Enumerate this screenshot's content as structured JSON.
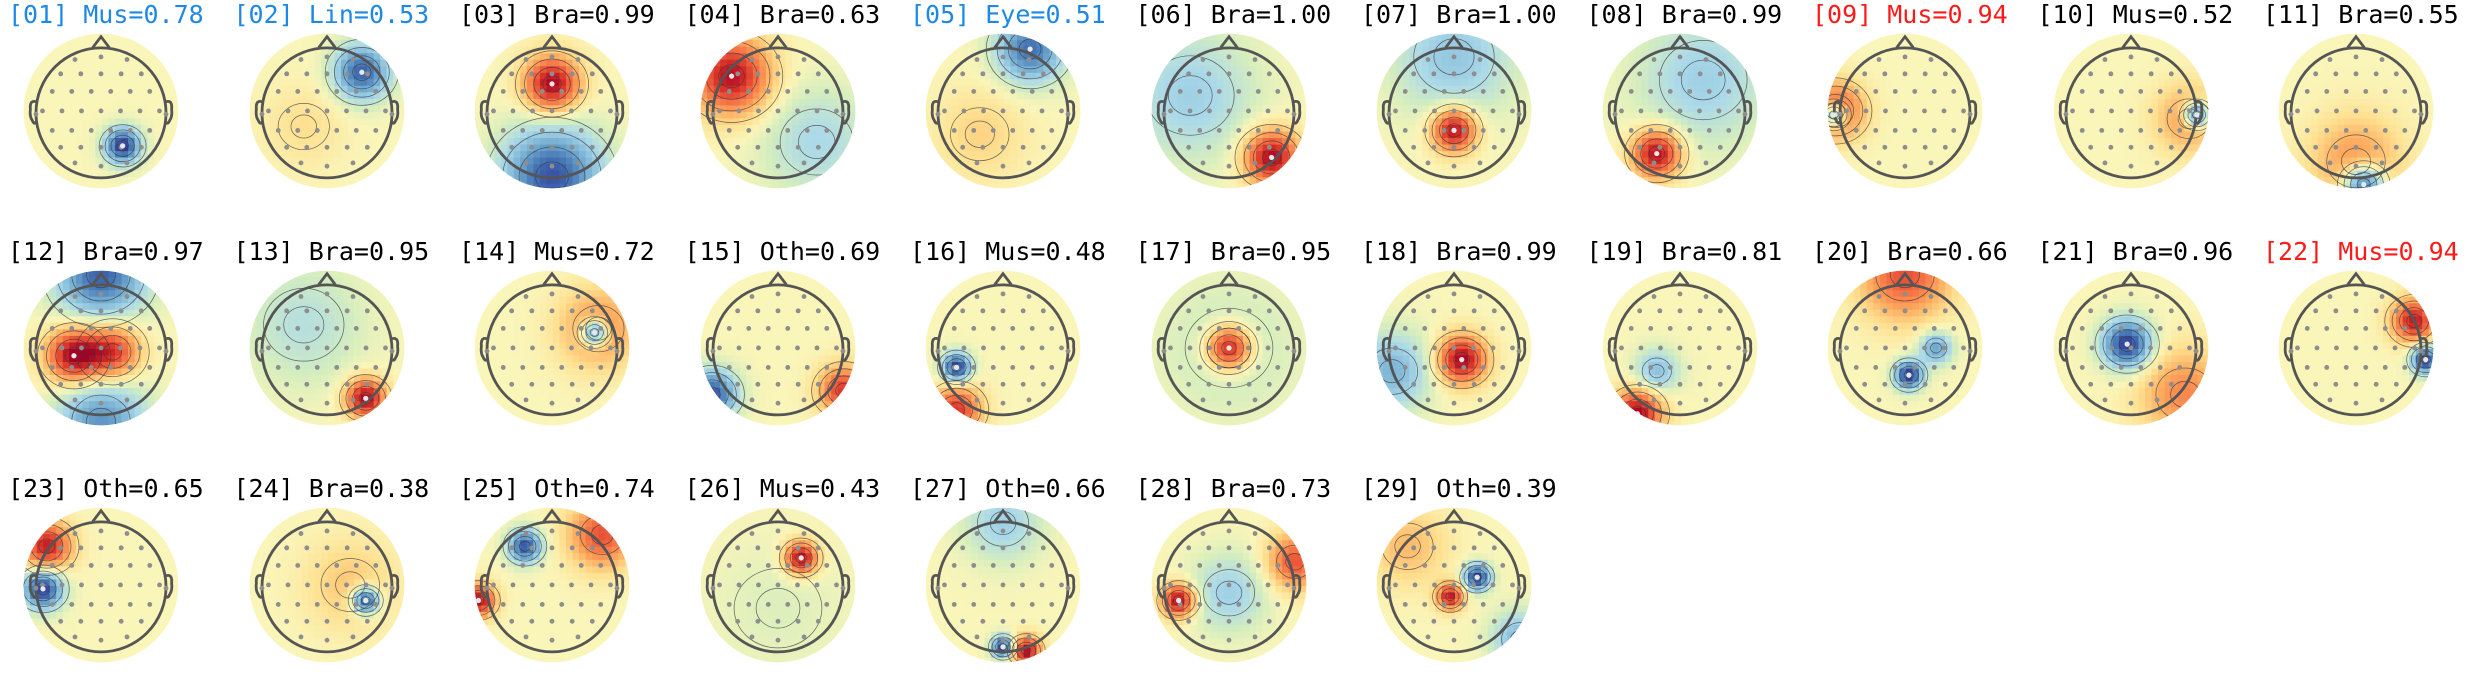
{
  "figure": {
    "description_free": true,
    "colors": {
      "highlight_blue": "#1e88e5",
      "highlight_red": "#ff1a1a",
      "default_title": "#000000",
      "head_outline": "#555555",
      "sensor": "#8e8e8e"
    },
    "components": [
      {
        "index": "01",
        "label": "[01] Mus=0.78",
        "class": "Mus",
        "prob": 0.78,
        "title_color": "blue",
        "sources": [
          {
            "u": 0.28,
            "v": 0.45,
            "s": 0.16,
            "a": -1.0
          }
        ]
      },
      {
        "index": "02",
        "label": "[02] Lin=0.53",
        "class": "Lin",
        "prob": 0.53,
        "title_color": "blue",
        "sources": [
          {
            "u": 0.45,
            "v": -0.5,
            "s": 0.25,
            "a": -0.85
          },
          {
            "u": -0.3,
            "v": 0.2,
            "s": 0.35,
            "a": 0.15
          }
        ]
      },
      {
        "index": "03",
        "label": "[03] Bra=0.99",
        "class": "Bra",
        "prob": 0.99,
        "title_color": "default",
        "sources": [
          {
            "u": 0.0,
            "v": -0.35,
            "s": 0.25,
            "a": 1.0
          },
          {
            "u": 0.0,
            "v": 0.85,
            "s": 0.45,
            "a": -0.9
          }
        ]
      },
      {
        "index": "04",
        "label": "[04] Bra=0.63",
        "class": "Bra",
        "prob": 0.63,
        "title_color": "default",
        "sources": [
          {
            "u": -0.6,
            "v": -0.45,
            "s": 0.35,
            "a": 0.95
          },
          {
            "u": 0.5,
            "v": 0.4,
            "s": 0.5,
            "a": -0.3
          }
        ]
      },
      {
        "index": "05",
        "label": "[05] Eye=0.51",
        "class": "Eye",
        "prob": 0.51,
        "title_color": "blue",
        "sources": [
          {
            "u": 0.35,
            "v": -0.8,
            "s": 0.3,
            "a": -0.8
          },
          {
            "u": -0.3,
            "v": 0.3,
            "s": 0.4,
            "a": 0.2
          }
        ]
      },
      {
        "index": "06",
        "label": "[06] Bra=1.00",
        "class": "Bra",
        "prob": 1.0,
        "title_color": "default",
        "sources": [
          {
            "u": 0.55,
            "v": 0.6,
            "s": 0.25,
            "a": 1.0
          },
          {
            "u": -0.5,
            "v": -0.2,
            "s": 0.6,
            "a": -0.35
          }
        ]
      },
      {
        "index": "07",
        "label": "[07] Bra=1.00",
        "class": "Bra",
        "prob": 1.0,
        "title_color": "default",
        "sources": [
          {
            "u": 0.0,
            "v": 0.25,
            "s": 0.2,
            "a": 1.0
          },
          {
            "u": 0.0,
            "v": -0.7,
            "s": 0.55,
            "a": -0.4
          }
        ]
      },
      {
        "index": "08",
        "label": "[08] Bra=0.99",
        "class": "Bra",
        "prob": 0.99,
        "title_color": "default",
        "sources": [
          {
            "u": -0.3,
            "v": 0.55,
            "s": 0.22,
            "a": 1.0
          },
          {
            "u": 0.3,
            "v": -0.4,
            "s": 0.6,
            "a": -0.35
          }
        ]
      },
      {
        "index": "09",
        "label": "[09] Mus=0.94",
        "class": "Mus",
        "prob": 0.94,
        "title_color": "red",
        "sources": [
          {
            "u": -0.92,
            "v": 0.05,
            "s": 0.12,
            "a": -1.0
          },
          {
            "u": -0.9,
            "v": 0.0,
            "s": 0.25,
            "a": 0.8
          }
        ]
      },
      {
        "index": "10",
        "label": "[10] Mus=0.52",
        "class": "Mus",
        "prob": 0.52,
        "title_color": "default",
        "sources": [
          {
            "u": 0.85,
            "v": 0.05,
            "s": 0.12,
            "a": -1.0
          },
          {
            "u": 0.75,
            "v": 0.1,
            "s": 0.3,
            "a": 0.45
          }
        ]
      },
      {
        "index": "11",
        "label": "[11] Bra=0.55",
        "class": "Bra",
        "prob": 0.55,
        "title_color": "default",
        "sources": [
          {
            "u": 0.1,
            "v": 0.95,
            "s": 0.18,
            "a": -1.0
          },
          {
            "u": 0.0,
            "v": 0.65,
            "s": 0.4,
            "a": 0.45
          }
        ]
      },
      {
        "index": "12",
        "label": "[12] Bra=0.97",
        "class": "Bra",
        "prob": 0.97,
        "title_color": "default",
        "sources": [
          {
            "u": -0.35,
            "v": 0.1,
            "s": 0.25,
            "a": 1.0
          },
          {
            "u": 0.15,
            "v": 0.05,
            "s": 0.25,
            "a": 0.8
          },
          {
            "u": 0.0,
            "v": -0.95,
            "s": 0.4,
            "a": -0.85
          },
          {
            "u": 0.0,
            "v": 0.95,
            "s": 0.4,
            "a": -0.65
          }
        ]
      },
      {
        "index": "13",
        "label": "[13] Bra=0.95",
        "class": "Bra",
        "prob": 0.95,
        "title_color": "default",
        "sources": [
          {
            "u": 0.5,
            "v": 0.65,
            "s": 0.18,
            "a": 1.0
          },
          {
            "u": -0.3,
            "v": -0.3,
            "s": 0.55,
            "a": -0.25
          }
        ]
      },
      {
        "index": "14",
        "label": "[14] Mus=0.72",
        "class": "Mus",
        "prob": 0.72,
        "title_color": "default",
        "sources": [
          {
            "u": 0.55,
            "v": -0.2,
            "s": 0.12,
            "a": -1.0
          },
          {
            "u": 0.6,
            "v": -0.25,
            "s": 0.35,
            "a": 0.5
          }
        ]
      },
      {
        "index": "15",
        "label": "[15] Oth=0.69",
        "class": "Oth",
        "prob": 0.69,
        "title_color": "default",
        "sources": [
          {
            "u": -0.85,
            "v": 0.6,
            "s": 0.22,
            "a": -0.9
          },
          {
            "u": 0.85,
            "v": 0.55,
            "s": 0.22,
            "a": 0.8
          }
        ]
      },
      {
        "index": "16",
        "label": "[16] Mus=0.48",
        "class": "Mus",
        "prob": 0.48,
        "title_color": "default",
        "sources": [
          {
            "u": -0.6,
            "v": 0.25,
            "s": 0.13,
            "a": -1.0
          },
          {
            "u": -0.6,
            "v": 0.8,
            "s": 0.22,
            "a": 0.8
          }
        ]
      },
      {
        "index": "17",
        "label": "[17] Bra=0.95",
        "class": "Bra",
        "prob": 0.95,
        "title_color": "default",
        "sources": [
          {
            "u": 0.0,
            "v": 0.0,
            "s": 0.2,
            "a": 1.0
          },
          {
            "u": 0.0,
            "v": 0.0,
            "s": 0.6,
            "a": -0.2
          }
        ]
      },
      {
        "index": "18",
        "label": "[18] Bra=0.99",
        "class": "Bra",
        "prob": 0.99,
        "title_color": "default",
        "sources": [
          {
            "u": 0.1,
            "v": 0.15,
            "s": 0.22,
            "a": 1.0
          },
          {
            "u": -0.8,
            "v": 0.3,
            "s": 0.35,
            "a": -0.5
          }
        ]
      },
      {
        "index": "19",
        "label": "[19] Bra=0.81",
        "class": "Bra",
        "prob": 0.81,
        "title_color": "default",
        "sources": [
          {
            "u": -0.55,
            "v": 0.85,
            "s": 0.22,
            "a": 1.0
          },
          {
            "u": -0.3,
            "v": 0.3,
            "s": 0.2,
            "a": -0.45
          }
        ]
      },
      {
        "index": "20",
        "label": "[20] Bra=0.66",
        "class": "Bra",
        "prob": 0.66,
        "title_color": "default",
        "sources": [
          {
            "u": 0.05,
            "v": 0.35,
            "s": 0.13,
            "a": -1.0
          },
          {
            "u": 0.4,
            "v": 0.0,
            "s": 0.15,
            "a": -0.6
          },
          {
            "u": 0.0,
            "v": -0.95,
            "s": 0.4,
            "a": 0.7
          }
        ]
      },
      {
        "index": "21",
        "label": "[21] Bra=0.96",
        "class": "Bra",
        "prob": 0.96,
        "title_color": "default",
        "sources": [
          {
            "u": -0.05,
            "v": -0.05,
            "s": 0.22,
            "a": -1.0
          },
          {
            "u": 0.7,
            "v": 0.6,
            "s": 0.4,
            "a": 0.5
          }
        ]
      },
      {
        "index": "22",
        "label": "[22] Mus=0.94",
        "class": "Mus",
        "prob": 0.94,
        "title_color": "red",
        "sources": [
          {
            "u": 0.9,
            "v": 0.15,
            "s": 0.13,
            "a": -1.0
          },
          {
            "u": 0.75,
            "v": -0.35,
            "s": 0.2,
            "a": 0.9
          }
        ]
      },
      {
        "index": "23",
        "label": "[23] Oth=0.65",
        "class": "Oth",
        "prob": 0.65,
        "title_color": "default",
        "sources": [
          {
            "u": -0.75,
            "v": 0.05,
            "s": 0.18,
            "a": -1.0
          },
          {
            "u": -0.7,
            "v": -0.5,
            "s": 0.22,
            "a": 0.9
          }
        ]
      },
      {
        "index": "24",
        "label": "[24] Bra=0.38",
        "class": "Bra",
        "prob": 0.38,
        "title_color": "default",
        "sources": [
          {
            "u": 0.5,
            "v": 0.2,
            "s": 0.12,
            "a": -1.0
          },
          {
            "u": 0.3,
            "v": 0.0,
            "s": 0.4,
            "a": 0.25
          }
        ]
      },
      {
        "index": "25",
        "label": "[25] Oth=0.74",
        "class": "Oth",
        "prob": 0.74,
        "title_color": "default",
        "sources": [
          {
            "u": -0.35,
            "v": -0.5,
            "s": 0.15,
            "a": -0.9
          },
          {
            "u": -0.95,
            "v": 0.2,
            "s": 0.15,
            "a": 0.95
          },
          {
            "u": 0.65,
            "v": -0.65,
            "s": 0.3,
            "a": 0.7
          }
        ]
      },
      {
        "index": "26",
        "label": "[26] Mus=0.43",
        "class": "Mus",
        "prob": 0.43,
        "title_color": "default",
        "sources": [
          {
            "u": 0.3,
            "v": -0.35,
            "s": 0.15,
            "a": 1.0
          },
          {
            "u": 0.0,
            "v": 0.3,
            "s": 0.6,
            "a": -0.1
          }
        ]
      },
      {
        "index": "27",
        "label": "[27] Oth=0.66",
        "class": "Oth",
        "prob": 0.66,
        "title_color": "default",
        "sources": [
          {
            "u": 0.0,
            "v": 0.8,
            "s": 0.1,
            "a": -1.0
          },
          {
            "u": 0.3,
            "v": 0.85,
            "s": 0.13,
            "a": 1.0
          },
          {
            "u": 0.0,
            "v": -0.8,
            "s": 0.35,
            "a": -0.35
          }
        ]
      },
      {
        "index": "28",
        "label": "[28] Bra=0.73",
        "class": "Bra",
        "prob": 0.73,
        "title_color": "default",
        "sources": [
          {
            "u": -0.65,
            "v": 0.2,
            "s": 0.15,
            "a": 1.0
          },
          {
            "u": 0.85,
            "v": -0.3,
            "s": 0.25,
            "a": 0.7
          },
          {
            "u": 0.0,
            "v": 0.1,
            "s": 0.35,
            "a": -0.35
          }
        ]
      },
      {
        "index": "29",
        "label": "[29] Oth=0.39",
        "class": "Oth",
        "prob": 0.39,
        "title_color": "default",
        "sources": [
          {
            "u": 0.3,
            "v": -0.1,
            "s": 0.12,
            "a": -1.0
          },
          {
            "u": -0.05,
            "v": 0.15,
            "s": 0.12,
            "a": 0.9
          },
          {
            "u": 0.85,
            "v": 0.7,
            "s": 0.25,
            "a": -0.5
          },
          {
            "u": -0.6,
            "v": -0.5,
            "s": 0.35,
            "a": 0.3
          }
        ]
      }
    ]
  }
}
